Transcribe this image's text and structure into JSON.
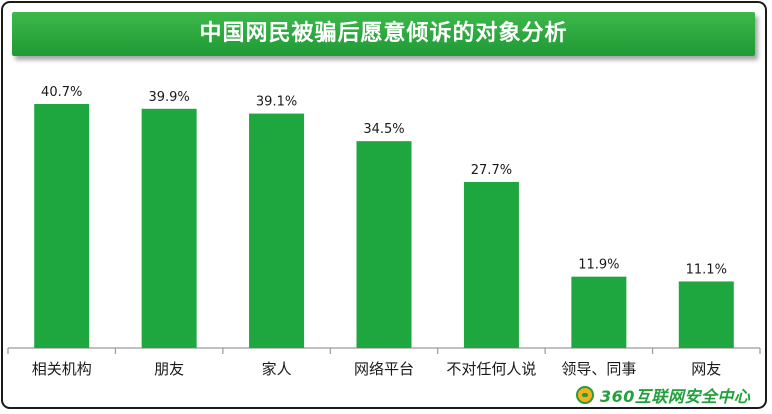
{
  "chart_data": {
    "type": "bar",
    "title": "中国网民被骗后愿意倾诉的对象分析",
    "categories": [
      "相关机构",
      "朋友",
      "家人",
      "网络平台",
      "不对任何人说",
      "领导、同事",
      "网友"
    ],
    "values": [
      40.7,
      39.9,
      39.1,
      34.5,
      27.7,
      11.9,
      11.1
    ],
    "value_labels": [
      "40.7%",
      "39.9%",
      "39.1%",
      "34.5%",
      "27.7%",
      "11.9%",
      "11.1%"
    ],
    "unit": "%",
    "ylim": [
      0,
      45
    ],
    "grid": false,
    "legend": "none",
    "bar_color": "#1ea63f"
  },
  "branding": {
    "logo_text": "360互联网安全中心"
  },
  "colors": {
    "title_bg": "#28a83f",
    "bar": "#1ea63f",
    "axis": "#9a9a9a",
    "text": "#1a1a1a"
  }
}
